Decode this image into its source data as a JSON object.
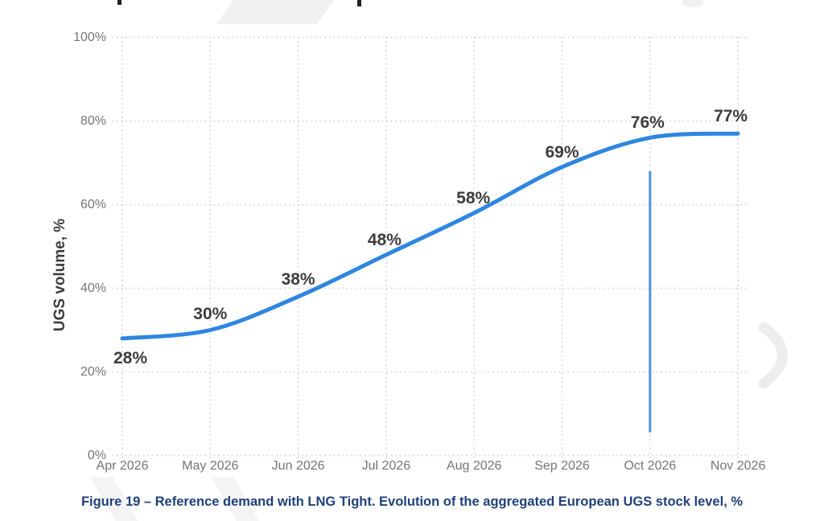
{
  "figure": {
    "caption": "Figure 19 – Reference demand with LNG Tight. Evolution of the aggregated European UGS stock level, %",
    "caption_color": "#1f4179"
  },
  "chart_data": {
    "type": "line",
    "title": "",
    "categories": [
      "Apr 2026",
      "May 2026",
      "Jun 2026",
      "Jul 2026",
      "Aug 2026",
      "Sep 2026",
      "Oct 2026",
      "Nov 2026"
    ],
    "series": [
      {
        "name": "Aggregated European UGS stock level",
        "values": [
          28,
          30,
          38,
          48,
          58,
          69,
          76,
          77
        ],
        "color": "#2e86e0"
      }
    ],
    "data_labels": [
      "28%",
      "30%",
      "38%",
      "48%",
      "58%",
      "69%",
      "76%",
      "77%"
    ],
    "xlabel": "",
    "ylabel": "UGS volume, %",
    "ylim": [
      0,
      100
    ],
    "y_ticks": [
      {
        "value": 0,
        "label": "0%"
      },
      {
        "value": 20,
        "label": "20%"
      },
      {
        "value": 40,
        "label": "40%"
      },
      {
        "value": 60,
        "label": "60%"
      },
      {
        "value": 80,
        "label": "80%"
      },
      {
        "value": 100,
        "label": "100%"
      }
    ],
    "grid": "dotted-both-axes",
    "grid_color": "#d9d9d9",
    "legend": "none",
    "annotation": {
      "type": "vline",
      "x_category": "Oct 2026",
      "y_from_pct": 5.5,
      "y_to_pct": 68,
      "color": "#4b94e6"
    }
  },
  "colors": {
    "tick_label": "#757575",
    "data_label": "#3d3d3d",
    "axis_title": "#3d3d3d"
  }
}
